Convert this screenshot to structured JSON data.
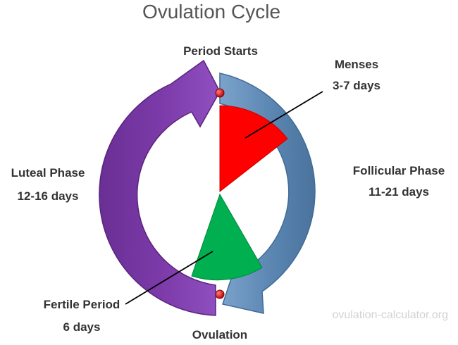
{
  "title": "Ovulation Cycle",
  "labels": {
    "period_starts": "Period Starts",
    "menses": "Menses",
    "menses_duration": "3-7 days",
    "follicular_phase": "Follicular Phase",
    "follicular_duration": "11-21 days",
    "luteal_phase": "Luteal Phase",
    "luteal_duration": "12-16 days",
    "fertile_period": "Fertile Period",
    "fertile_duration": "6 days",
    "ovulation": "Ovulation"
  },
  "watermark": "ovulation-calculator.org",
  "colors": {
    "title": "#555555",
    "label_text": "#333333",
    "follicular_arrow": "#5b86b2",
    "luteal_arrow": "#7b3aa8",
    "menses_wedge": "#ff0000",
    "fertile_wedge": "#00b050",
    "marker_dot": "#cc1a1a",
    "watermark": "#d2d2d2"
  }
}
